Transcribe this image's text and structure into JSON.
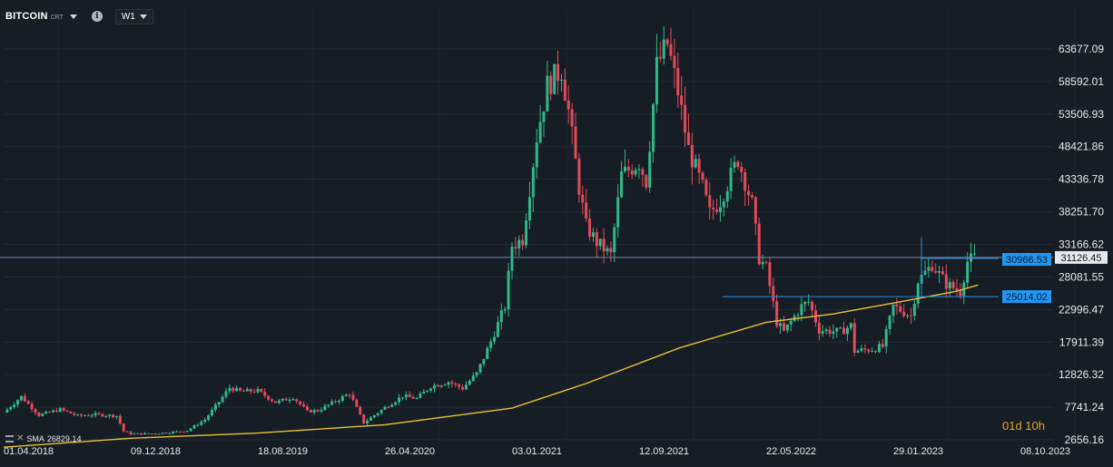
{
  "toolbar": {
    "symbol": "BITCOIN",
    "symbol_sub": "CRT",
    "info_icon": "info-icon",
    "timeframe": "W1"
  },
  "sma_legend": {
    "label": "SMA",
    "value": "26829.14"
  },
  "countdown": "01d 10h",
  "colors": {
    "background": "#161d24",
    "bull": "#2fb98b",
    "bear": "#e34a5c",
    "sma": "#e8c33a",
    "hline": "#2b8fe0",
    "current_price_line": "#6f8aa3"
  },
  "chart_data": {
    "type": "candlestick",
    "title": "BITCOIN",
    "timeframe": "W1",
    "x_ticks": [
      "01.04.2018",
      "09.12.2018",
      "18.08.2019",
      "26.04.2020",
      "03.01.2021",
      "12.09.2021",
      "22.05.2022",
      "29.01.2023",
      "08.10.2023"
    ],
    "y_ticks": [
      "63677.09",
      "58592.01",
      "53506.93",
      "48421.86",
      "43336.78",
      "38251.70",
      "33166.62",
      "28081.55",
      "22996.47",
      "17911.39",
      "12826.32",
      "7741.24",
      "2656.16"
    ],
    "ylim": [
      2656.16,
      63677.09
    ],
    "grid": true,
    "price_series": [
      [
        "2018-04-01",
        6900
      ],
      [
        "2018-05-06",
        9400
      ],
      [
        "2018-06-10",
        6500
      ],
      [
        "2018-07-22",
        7400
      ],
      [
        "2018-08-26",
        6400
      ],
      [
        "2018-09-30",
        6600
      ],
      [
        "2018-11-11",
        6400
      ],
      [
        "2018-11-25",
        4000
      ],
      [
        "2018-12-09",
        3600
      ],
      [
        "2019-01-13",
        3600
      ],
      [
        "2019-02-24",
        3800
      ],
      [
        "2019-03-31",
        4100
      ],
      [
        "2019-05-05",
        5800
      ],
      [
        "2019-06-02",
        8600
      ],
      [
        "2019-06-23",
        10800
      ],
      [
        "2019-07-14",
        10200
      ],
      [
        "2019-08-18",
        10300
      ],
      [
        "2019-09-22",
        8500
      ],
      [
        "2019-10-27",
        9300
      ],
      [
        "2019-11-24",
        7100
      ],
      [
        "2019-12-15",
        7200
      ],
      [
        "2020-01-19",
        8700
      ],
      [
        "2020-02-16",
        9900
      ],
      [
        "2020-03-15",
        5300
      ],
      [
        "2020-04-26",
        7700
      ],
      [
        "2020-05-31",
        9500
      ],
      [
        "2020-06-28",
        9100
      ],
      [
        "2020-07-26",
        11000
      ],
      [
        "2020-08-30",
        11700
      ],
      [
        "2020-09-27",
        10700
      ],
      [
        "2020-10-25",
        13000
      ],
      [
        "2020-11-22",
        18000
      ],
      [
        "2020-12-20",
        23500
      ],
      [
        "2021-01-03",
        33000
      ],
      [
        "2021-01-24",
        34000
      ],
      [
        "2021-02-21",
        50000
      ],
      [
        "2021-03-14",
        58000
      ],
      [
        "2021-04-11",
        60500
      ],
      [
        "2021-04-25",
        54000
      ],
      [
        "2021-05-16",
        42000
      ],
      [
        "2021-05-30",
        36000
      ],
      [
        "2021-06-20",
        33500
      ],
      [
        "2021-07-18",
        31500
      ],
      [
        "2021-08-08",
        44000
      ],
      [
        "2021-09-12",
        46000
      ],
      [
        "2021-09-26",
        43000
      ],
      [
        "2021-10-17",
        61000
      ],
      [
        "2021-11-07",
        64500
      ],
      [
        "2021-11-28",
        57000
      ],
      [
        "2021-12-19",
        48000
      ],
      [
        "2022-01-16",
        42000
      ],
      [
        "2022-01-30",
        38000
      ],
      [
        "2022-02-20",
        40000
      ],
      [
        "2022-03-27",
        46500
      ],
      [
        "2022-04-24",
        39500
      ],
      [
        "2022-05-08",
        31000
      ],
      [
        "2022-05-22",
        29500
      ],
      [
        "2022-06-12",
        21000
      ],
      [
        "2022-06-26",
        19500
      ],
      [
        "2022-07-31",
        23500
      ],
      [
        "2022-08-14",
        24200
      ],
      [
        "2022-09-04",
        19800
      ],
      [
        "2022-10-16",
        19500
      ],
      [
        "2022-11-06",
        20500
      ],
      [
        "2022-11-13",
        16500
      ],
      [
        "2022-12-18",
        16800
      ],
      [
        "2023-01-08",
        17200
      ],
      [
        "2023-01-29",
        23500
      ],
      [
        "2023-03-05",
        22000
      ],
      [
        "2023-03-19",
        27500
      ],
      [
        "2023-04-16",
        30000
      ],
      [
        "2023-05-14",
        27000
      ],
      [
        "2023-06-11",
        25800
      ],
      [
        "2023-06-25",
        30500
      ],
      [
        "2023-07-09",
        31100
      ]
    ],
    "sma": {
      "name": "SMA",
      "last_value": 26829.14,
      "points": [
        [
          "2018-04-01",
          1500
        ],
        [
          "2018-12-09",
          2900
        ],
        [
          "2019-08-18",
          3700
        ],
        [
          "2020-04-26",
          5000
        ],
        [
          "2021-01-03",
          7600
        ],
        [
          "2021-06-01",
          11500
        ],
        [
          "2021-12-01",
          17000
        ],
        [
          "2022-05-22",
          21000
        ],
        [
          "2022-10-01",
          22300
        ],
        [
          "2023-01-29",
          24000
        ],
        [
          "2023-06-01",
          25800
        ],
        [
          "2023-07-16",
          26829.14
        ]
      ]
    },
    "horizontal_lines": [
      {
        "label": "30966.53",
        "value": 30966.53
      },
      {
        "label": "25014.02",
        "value": 25014.02
      }
    ],
    "current_price": {
      "label": "31126.45",
      "value": 31126.45
    }
  }
}
